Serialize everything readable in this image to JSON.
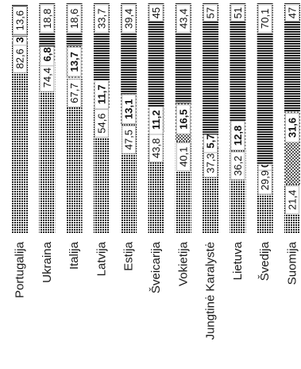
{
  "chart_data": {
    "type": "bar",
    "stacked": true,
    "orientation": "vertical",
    "title": "",
    "xlabel": "",
    "ylabel": "",
    "ylim": [
      0,
      100
    ],
    "legend": "none",
    "grid": false,
    "categories": [
      "Portugalija",
      "Ukraina",
      "Italija",
      "Latvija",
      "Estija",
      "Šveicarija",
      "Vokietija",
      "Jungtinė Karalystė",
      "Lietuva",
      "Švedija",
      "Suomija"
    ],
    "series": [
      {
        "values": [
          82.6,
          74.4,
          67.7,
          54.6,
          47.5,
          43.8,
          40.1,
          37.3,
          36.2,
          29.9,
          21.4
        ],
        "labels": [
          "82,6",
          "74,4",
          "67,7",
          "54,6",
          "47,5",
          "43,8",
          "40,1",
          "37,3",
          "36,2",
          "29,9",
          "21,4"
        ],
        "pattern": "dots",
        "bold_labels": false
      },
      {
        "values": [
          3,
          6.8,
          13.7,
          11.7,
          13.1,
          11.2,
          16.5,
          5.7,
          12.8,
          0,
          31.6
        ],
        "labels": [
          "3",
          "6,8",
          "13,7",
          "11,7",
          "13,1",
          "11,2",
          "16,5",
          "5,7",
          "12,8",
          "0",
          "31,6"
        ],
        "pattern": "checker",
        "bold_labels": true
      },
      {
        "values": [
          13.6,
          18.8,
          18.6,
          33.7,
          39.4,
          45,
          43.4,
          57,
          51,
          70.1,
          47
        ],
        "labels": [
          "13,6",
          "18,8",
          "18,6",
          "33,7",
          "39,4",
          "45",
          "43,4",
          "57",
          "51",
          "70,1",
          "47"
        ],
        "pattern": "stripes",
        "bold_labels": false
      }
    ]
  }
}
